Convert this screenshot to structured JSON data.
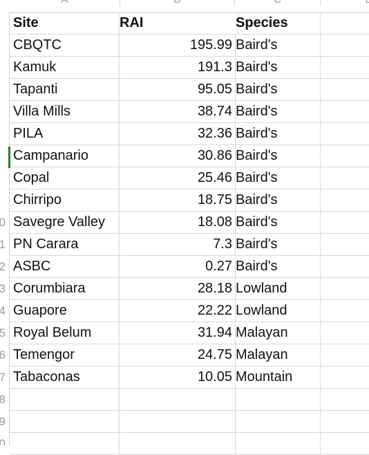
{
  "columns": {
    "A": "A",
    "B": "B",
    "C": "C",
    "D": "D"
  },
  "row_numbers": [
    "",
    "",
    "",
    "",
    "",
    "",
    "",
    "",
    "",
    "0",
    "1",
    "2",
    "3",
    "4",
    "5",
    "6",
    "7",
    "8",
    "9",
    "0"
  ],
  "header": {
    "site": "Site",
    "rai": "RAI",
    "species": "Species"
  },
  "rows": [
    {
      "site": "CBQTC",
      "rai": "195.99",
      "species": "Baird's"
    },
    {
      "site": "Kamuk",
      "rai": "191.3",
      "species": "Baird's"
    },
    {
      "site": "Tapanti",
      "rai": "95.05",
      "species": "Baird's"
    },
    {
      "site": "Villa Mills",
      "rai": "38.74",
      "species": "Baird's"
    },
    {
      "site": "PILA",
      "rai": "32.36",
      "species": "Baird's"
    },
    {
      "site": "Campanario",
      "rai": "30.86",
      "species": "Baird's"
    },
    {
      "site": "Copal",
      "rai": "25.46",
      "species": "Baird's"
    },
    {
      "site": "Chirripo",
      "rai": "18.75",
      "species": "Baird's"
    },
    {
      "site": "Savegre Valley",
      "rai": "18.08",
      "species": "Baird's"
    },
    {
      "site": "PN Carara",
      "rai": "7.3",
      "species": "Baird's"
    },
    {
      "site": "ASBC",
      "rai": "0.27",
      "species": "Baird's"
    },
    {
      "site": "Corumbiara",
      "rai": "28.18",
      "species": "Lowland"
    },
    {
      "site": "Guapore",
      "rai": "22.22",
      "species": "Lowland"
    },
    {
      "site": "Royal Belum",
      "rai": "31.94",
      "species": "Malayan"
    },
    {
      "site": "Temengor",
      "rai": "24.75",
      "species": "Malayan"
    },
    {
      "site": "Tabaconas",
      "rai": "10.05",
      "species": "Mountain"
    },
    {
      "site": "",
      "rai": "",
      "species": ""
    },
    {
      "site": "",
      "rai": "",
      "species": ""
    },
    {
      "site": "",
      "rai": "",
      "species": ""
    }
  ]
}
